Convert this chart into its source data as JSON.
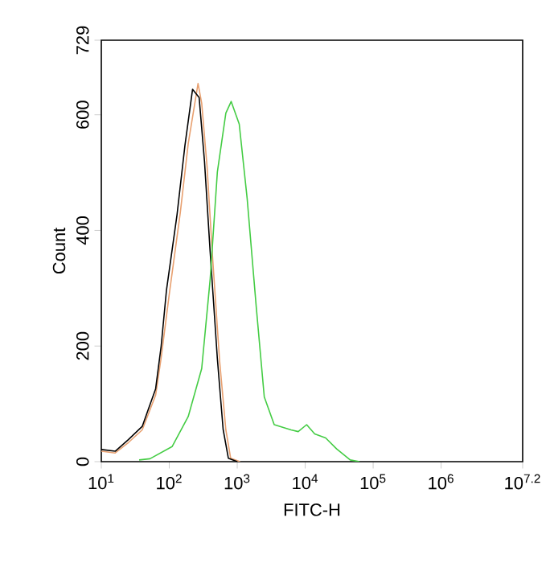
{
  "chart_data": {
    "type": "line",
    "xlabel": "FITC-H",
    "ylabel": "Count",
    "log": "x",
    "xlim": [
      10,
      15848932
    ],
    "ylim": [
      0,
      729
    ],
    "xticks": [
      {
        "value": 10,
        "label": "10$^{1}$"
      },
      {
        "value": 100,
        "label": "10$^{2}$"
      },
      {
        "value": 1000,
        "label": "10$^{3}$"
      },
      {
        "value": 10000,
        "label": "10$^{4}$"
      },
      {
        "value": 100000,
        "label": "10$^{5}$"
      },
      {
        "value": 1000000,
        "label": "10$^{6}$"
      },
      {
        "value": 15848932,
        "label": "10$^{7.2}$"
      }
    ],
    "yticks": [
      0,
      200,
      400,
      600,
      729
    ],
    "marker": "none",
    "line_style": "solid",
    "grid": false,
    "legend": false,
    "series": [
      {
        "color": "#e8a070",
        "x": [
          10,
          16,
          25,
          40,
          63,
          76,
          100,
          145,
          190,
          265,
          300,
          360,
          430,
          550,
          680,
          800,
          1100
        ],
        "values": [
          18,
          15,
          33,
          55,
          115,
          180,
          290,
          430,
          550,
          654,
          620,
          510,
          360,
          175,
          55,
          6,
          0
        ]
      },
      {
        "color": "#000000",
        "x": [
          10,
          16,
          25,
          40,
          63,
          76,
          91,
          130,
          170,
          220,
          275,
          330,
          400,
          510,
          620,
          740,
          1000
        ],
        "values": [
          21,
          18,
          38,
          61,
          126,
          200,
          297,
          427,
          547,
          644,
          630,
          519,
          362,
          178,
          56,
          6,
          0
        ]
      },
      {
        "color": "#44cc44",
        "x": [
          36,
          52,
          110,
          190,
          300,
          400,
          510,
          680,
          815,
          1070,
          1400,
          1900,
          2500,
          3500,
          6200,
          7900,
          10500,
          13800,
          20000,
          29000,
          46000,
          63000
        ],
        "values": [
          3,
          5,
          26,
          78,
          161,
          316,
          501,
          603,
          623,
          584,
          455,
          269,
          112,
          64,
          55,
          52,
          64,
          48,
          41,
          22,
          3,
          0
        ]
      }
    ]
  }
}
